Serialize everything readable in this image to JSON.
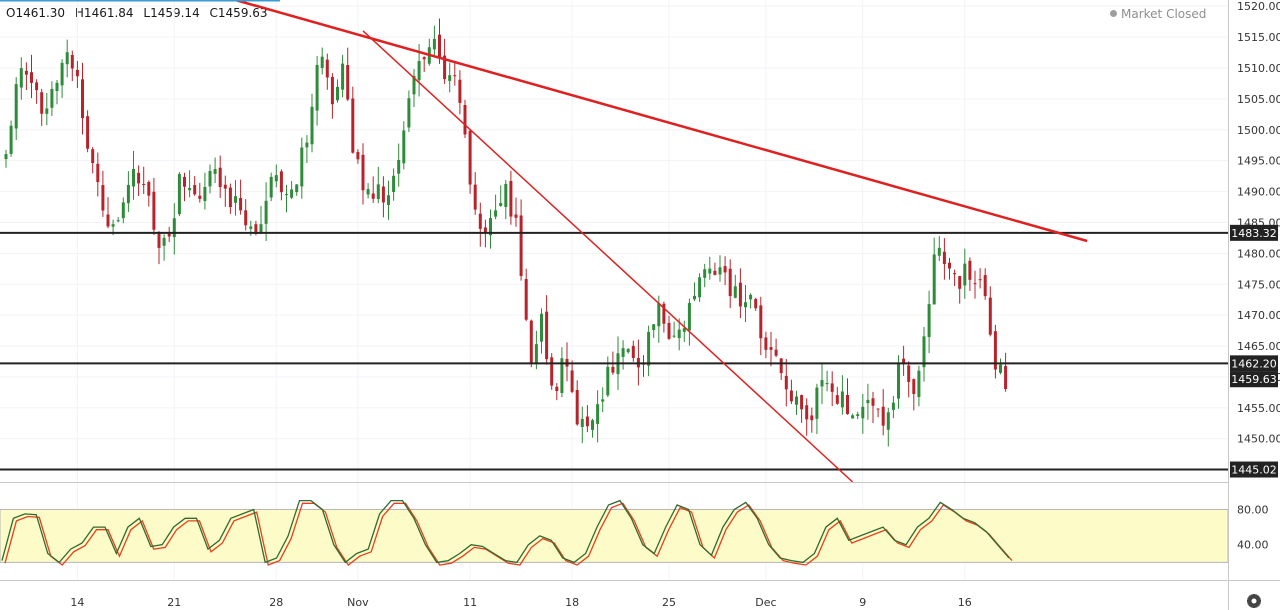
{
  "header": {
    "open": "O1461.30",
    "high": "H1461.84",
    "low": "L1459.14",
    "close": "C1459.63",
    "market_status": "Market Closed"
  },
  "colors": {
    "up": "#2e8b3a",
    "down": "#b8232b",
    "trendline": "#e02020",
    "level": "#222222",
    "stoch_band": "#fdfbc8",
    "stoch_k": "#2f6b2f",
    "stoch_d": "#e8401c",
    "badge": "#222222",
    "border": "#3a9bd5"
  },
  "icons": {
    "settings": "gear-icon"
  },
  "chart_data": [
    {
      "type": "candlestick",
      "title": "",
      "ylim": [
        1443,
        1521
      ],
      "y_ticks": [
        "1450.00",
        "1455.00",
        "1460.00",
        "1465.00",
        "1470.00",
        "1475.00",
        "1480.00",
        "1485.00",
        "1490.00",
        "1495.00",
        "1500.00",
        "1505.00",
        "1510.00",
        "1515.00",
        "1520.00"
      ],
      "x_ticks": [
        {
          "label": "14",
          "i": 14
        },
        {
          "label": "21",
          "i": 33
        },
        {
          "label": "28",
          "i": 53
        },
        {
          "label": "Nov",
          "i": 69
        },
        {
          "label": "11",
          "i": 91
        },
        {
          "label": "18",
          "i": 111
        },
        {
          "label": "25",
          "i": 130
        },
        {
          "label": "Dec",
          "i": 149
        },
        {
          "label": "9",
          "i": 168
        },
        {
          "label": "16",
          "i": 188
        }
      ],
      "horizontal_levels": [
        {
          "label": "1483.32",
          "value": 1483.32
        },
        {
          "label": "1462.20",
          "value": 1462.2
        },
        {
          "label": "1445.02",
          "value": 1445.02
        }
      ],
      "last_price": {
        "label": "1459.63",
        "value": 1459.63
      },
      "trendlines": [
        {
          "from": {
            "i": 45,
            "value": 1521
          },
          "to": {
            "i": 212,
            "value": 1482
          }
        },
        {
          "from": {
            "i": 70,
            "value": 1516
          },
          "to": {
            "i": 166,
            "value": 1443
          }
        }
      ],
      "series": [
        {
          "path_key_points": [
            1495,
            1511,
            1510,
            1502,
            1508,
            1512,
            1510,
            1498,
            1490,
            1485,
            1486,
            1492,
            1491,
            1482,
            1483,
            1492,
            1488,
            1490,
            1493,
            1488,
            1490,
            1484,
            1486,
            1492,
            1487,
            1493,
            1498,
            1512,
            1505,
            1510,
            1495,
            1491,
            1490,
            1489,
            1496,
            1508,
            1513,
            1514,
            1508,
            1506,
            1490,
            1483,
            1487,
            1490,
            1484,
            1462,
            1470,
            1458,
            1462,
            1454,
            1452,
            1456,
            1462,
            1465,
            1462,
            1464,
            1472,
            1468,
            1466,
            1473,
            1476,
            1478,
            1476,
            1472,
            1474,
            1466,
            1462,
            1460,
            1455,
            1452,
            1460,
            1458,
            1456,
            1455,
            1457,
            1453,
            1455,
            1462,
            1458,
            1465,
            1480,
            1478,
            1476,
            1477,
            1474,
            1463,
            1460
          ]
        }
      ]
    },
    {
      "type": "line",
      "title": "",
      "ylim": [
        0,
        110
      ],
      "y_ticks": [
        "80.00",
        "40.00"
      ],
      "band": [
        20,
        80
      ],
      "series": [
        {
          "name": "",
          "values": [
            22,
            70,
            75,
            74,
            30,
            20,
            35,
            42,
            60,
            60,
            30,
            60,
            70,
            38,
            40,
            60,
            70,
            70,
            35,
            45,
            70,
            75,
            80,
            20,
            25,
            50,
            90,
            90,
            80,
            40,
            20,
            30,
            35,
            75,
            90,
            90,
            70,
            40,
            20,
            22,
            30,
            40,
            38,
            30,
            22,
            20,
            40,
            50,
            45,
            25,
            20,
            30,
            60,
            85,
            90,
            70,
            40,
            30,
            60,
            85,
            80,
            40,
            28,
            60,
            80,
            88,
            70,
            40,
            25,
            22,
            20,
            30,
            60,
            70,
            45,
            50,
            55,
            60,
            45,
            40,
            60,
            70,
            88,
            80,
            70,
            65,
            55,
            40,
            25
          ]
        }
      ]
    }
  ]
}
